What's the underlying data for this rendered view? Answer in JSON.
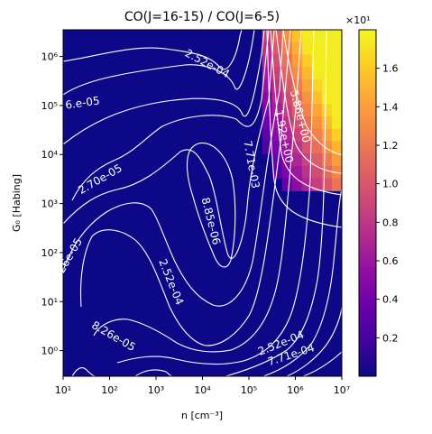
{
  "chart_data": {
    "type": "heatmap",
    "title": "CO(J=16-15) / CO(J=6-5)",
    "xlabel": "n [cm⁻³]",
    "ylabel": "G₀ [Habing]",
    "xscale": "log",
    "yscale": "log",
    "xlim": [
      10,
      10000000
    ],
    "ylim": [
      0.3,
      3500000
    ],
    "x_ticks": [
      "10¹",
      "10²",
      "10³",
      "10⁴",
      "10⁵",
      "10⁶",
      "10⁷"
    ],
    "y_ticks": [
      "10⁰",
      "10¹",
      "10²",
      "10³",
      "10⁴",
      "10⁵",
      "10⁶"
    ],
    "colormap": "plasma",
    "colorbar": {
      "range": [
        0.0,
        1.8
      ],
      "ticks": [
        "0.2",
        "0.4",
        "0.6",
        "0.8",
        "1.0",
        "1.2",
        "1.4",
        "1.6"
      ],
      "multiplier": "×10¹"
    },
    "background_color": "#0d0887",
    "contour_color": "#ffffff",
    "hot_region": "upper-right (high n, high G₀), up to ≈1.75×10¹",
    "contour_labels": [
      "2.52e-04",
      "5.86e+00",
      "1.92e+00",
      "6.e-05",
      "2.70e-05",
      "8.85e-06",
      "7.71e-03",
      "2.26e-05",
      "2.52e-04",
      "8.26e-05",
      "2.52e-04",
      "7.71e-04"
    ]
  }
}
